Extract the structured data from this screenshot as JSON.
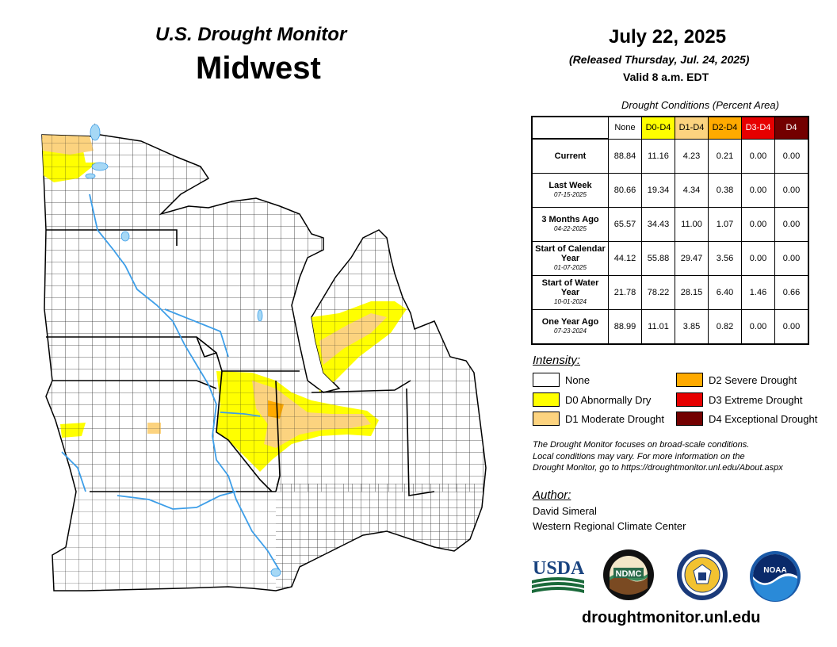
{
  "header": {
    "title_line1": "U.S. Drought Monitor",
    "title_line2": "Midwest",
    "date": "July 22, 2025",
    "released": "(Released Thursday, Jul. 24, 2025)",
    "valid": "Valid 8 a.m. EDT"
  },
  "conditions": {
    "title": "Drought Conditions (Percent Area)",
    "columns": [
      "None",
      "D0-D4",
      "D1-D4",
      "D2-D4",
      "D3-D4",
      "D4"
    ],
    "column_colors": [
      "#ffffff",
      "#ffff00",
      "#fcd37f",
      "#ffaa00",
      "#e60000",
      "#730000"
    ],
    "column_text_colors": [
      "#000000",
      "#000000",
      "#000000",
      "#000000",
      "#ffffff",
      "#ffffff"
    ],
    "rows": [
      {
        "label": "Current",
        "date": "",
        "values": [
          "88.84",
          "11.16",
          "4.23",
          "0.21",
          "0.00",
          "0.00"
        ]
      },
      {
        "label": "Last Week",
        "date": "07-15-2025",
        "values": [
          "80.66",
          "19.34",
          "4.34",
          "0.38",
          "0.00",
          "0.00"
        ]
      },
      {
        "label": "3 Months Ago",
        "date": "04-22-2025",
        "values": [
          "65.57",
          "34.43",
          "11.00",
          "1.07",
          "0.00",
          "0.00"
        ]
      },
      {
        "label": "Start of Calendar Year",
        "date": "01-07-2025",
        "values": [
          "44.12",
          "55.88",
          "29.47",
          "3.56",
          "0.00",
          "0.00"
        ]
      },
      {
        "label": "Start of Water Year",
        "date": "10-01-2024",
        "values": [
          "21.78",
          "78.22",
          "28.15",
          "6.40",
          "1.46",
          "0.66"
        ]
      },
      {
        "label": "One Year Ago",
        "date": "07-23-2024",
        "values": [
          "88.99",
          "11.01",
          "3.85",
          "0.82",
          "0.00",
          "0.00"
        ]
      }
    ]
  },
  "legend": {
    "title": "Intensity:",
    "items": [
      {
        "label": "None",
        "color": "#ffffff"
      },
      {
        "label": "D0 Abnormally Dry",
        "color": "#ffff00"
      },
      {
        "label": "D1 Moderate Drought",
        "color": "#fcd37f"
      },
      {
        "label": "D2 Severe Drought",
        "color": "#ffaa00"
      },
      {
        "label": "D3 Extreme Drought",
        "color": "#e60000"
      },
      {
        "label": "D4 Exceptional Drought",
        "color": "#730000"
      }
    ]
  },
  "note": {
    "line1": "The Drought Monitor focuses on broad-scale conditions.",
    "line2": "Local conditions may vary. For more information on the",
    "line3": "Drought Monitor, go to https://droughtmonitor.unl.edu/About.aspx"
  },
  "author": {
    "title": "Author:",
    "name": "David Simeral",
    "org": "Western Regional Climate Center"
  },
  "logos": {
    "usda": "USDA",
    "ndmc": "NDMC",
    "noaa": "NOAA"
  },
  "footer": {
    "url": "droughtmonitor.unl.edu"
  },
  "map": {
    "water_color": "#3d9ee8",
    "lake_fill": "#a6d8f5",
    "d0_color": "#ffff00",
    "d1_color": "#fcd37f",
    "d2_color": "#ffaa00"
  }
}
